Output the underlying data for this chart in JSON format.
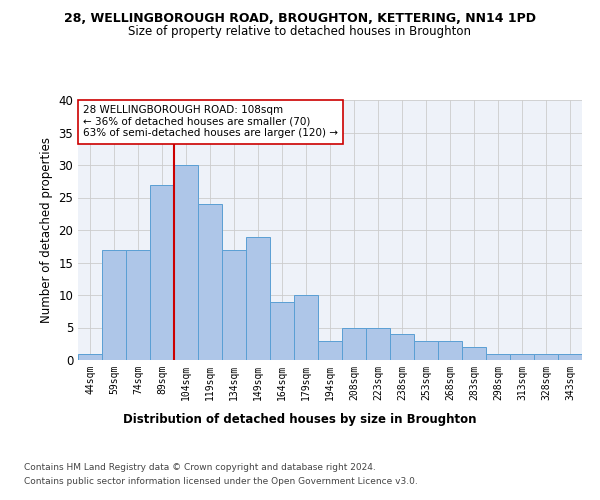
{
  "title1": "28, WELLINGBOROUGH ROAD, BROUGHTON, KETTERING, NN14 1PD",
  "title2": "Size of property relative to detached houses in Broughton",
  "xlabel": "Distribution of detached houses by size in Broughton",
  "ylabel": "Number of detached properties",
  "categories": [
    "44sqm",
    "59sqm",
    "74sqm",
    "89sqm",
    "104sqm",
    "119sqm",
    "134sqm",
    "149sqm",
    "164sqm",
    "179sqm",
    "194sqm",
    "208sqm",
    "223sqm",
    "238sqm",
    "253sqm",
    "268sqm",
    "283sqm",
    "298sqm",
    "313sqm",
    "328sqm",
    "343sqm"
  ],
  "values": [
    1,
    17,
    17,
    27,
    30,
    24,
    17,
    19,
    9,
    10,
    3,
    5,
    5,
    4,
    3,
    3,
    2,
    1,
    1,
    1,
    1
  ],
  "bar_color": "#aec6e8",
  "bar_edge_color": "#5a9fd4",
  "vline_bar_index": 4,
  "vline_color": "#cc0000",
  "annotation_text": "28 WELLINGBOROUGH ROAD: 108sqm\n← 36% of detached houses are smaller (70)\n63% of semi-detached houses are larger (120) →",
  "annotation_box_color": "white",
  "annotation_box_edge": "#cc0000",
  "ylim": [
    0,
    40
  ],
  "yticks": [
    0,
    5,
    10,
    15,
    20,
    25,
    30,
    35,
    40
  ],
  "grid_color": "#cccccc",
  "bg_color": "#eef2f9",
  "footer1": "Contains HM Land Registry data © Crown copyright and database right 2024.",
  "footer2": "Contains public sector information licensed under the Open Government Licence v3.0."
}
